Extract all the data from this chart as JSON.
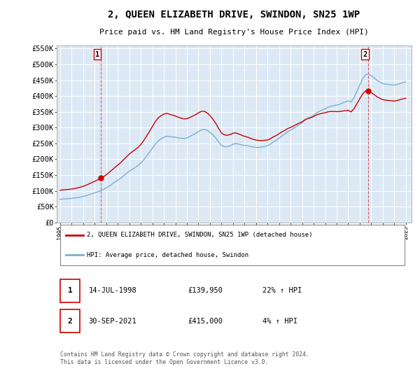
{
  "title": "2, QUEEN ELIZABETH DRIVE, SWINDON, SN25 1WP",
  "subtitle": "Price paid vs. HM Land Registry's House Price Index (HPI)",
  "background_color": "#ffffff",
  "plot_bg_color": "#dce9f5",
  "grid_color": "#ffffff",
  "hpi_line_color": "#7bafd4",
  "price_line_color": "#cc0000",
  "ylim": [
    0,
    560000
  ],
  "yticks": [
    0,
    50000,
    100000,
    150000,
    200000,
    250000,
    300000,
    350000,
    400000,
    450000,
    500000,
    550000
  ],
  "ytick_labels": [
    "£0",
    "£50K",
    "£100K",
    "£150K",
    "£200K",
    "£250K",
    "£300K",
    "£350K",
    "£400K",
    "£450K",
    "£500K",
    "£550K"
  ],
  "sale1_year": 1998.54,
  "sale1_price": 139950,
  "sale1_label": "1",
  "sale2_year": 2021.75,
  "sale2_price": 415000,
  "sale2_label": "2",
  "legend_line1": "2, QUEEN ELIZABETH DRIVE, SWINDON, SN25 1WP (detached house)",
  "legend_line2": "HPI: Average price, detached house, Swindon",
  "table_row1": [
    "1",
    "14-JUL-1998",
    "£139,950",
    "22% ↑ HPI"
  ],
  "table_row2": [
    "2",
    "30-SEP-2021",
    "£415,000",
    "4% ↑ HPI"
  ],
  "footer": "Contains HM Land Registry data © Crown copyright and database right 2024.\nThis data is licensed under the Open Government Licence v3.0.",
  "hpi_data_x": [
    1995.0,
    1995.25,
    1995.5,
    1995.75,
    1996.0,
    1996.25,
    1996.5,
    1996.75,
    1997.0,
    1997.25,
    1997.5,
    1997.75,
    1998.0,
    1998.25,
    1998.5,
    1998.75,
    1999.0,
    1999.25,
    1999.5,
    1999.75,
    2000.0,
    2000.25,
    2000.5,
    2000.75,
    2001.0,
    2001.25,
    2001.5,
    2001.75,
    2002.0,
    2002.25,
    2002.5,
    2002.75,
    2003.0,
    2003.25,
    2003.5,
    2003.75,
    2004.0,
    2004.25,
    2004.5,
    2004.75,
    2005.0,
    2005.25,
    2005.5,
    2005.75,
    2006.0,
    2006.25,
    2006.5,
    2006.75,
    2007.0,
    2007.25,
    2007.5,
    2007.75,
    2008.0,
    2008.25,
    2008.5,
    2008.75,
    2009.0,
    2009.25,
    2009.5,
    2009.75,
    2010.0,
    2010.25,
    2010.5,
    2010.75,
    2011.0,
    2011.25,
    2011.5,
    2011.75,
    2012.0,
    2012.25,
    2012.5,
    2012.75,
    2013.0,
    2013.25,
    2013.5,
    2013.75,
    2014.0,
    2014.25,
    2014.5,
    2014.75,
    2015.0,
    2015.25,
    2015.5,
    2015.75,
    2016.0,
    2016.25,
    2016.5,
    2016.75,
    2017.0,
    2017.25,
    2017.5,
    2017.75,
    2018.0,
    2018.25,
    2018.5,
    2018.75,
    2019.0,
    2019.25,
    2019.5,
    2019.75,
    2020.0,
    2020.25,
    2020.5,
    2020.75,
    2021.0,
    2021.25,
    2021.5,
    2021.75,
    2022.0,
    2022.25,
    2022.5,
    2022.75,
    2023.0,
    2023.25,
    2023.5,
    2023.75,
    2024.0,
    2024.25,
    2024.5,
    2024.75,
    2025.0
  ],
  "hpi_data_y": [
    73000,
    74000,
    74500,
    75000,
    76000,
    77000,
    78500,
    80000,
    82000,
    84500,
    87500,
    90500,
    93500,
    96500,
    100000,
    104000,
    109000,
    115000,
    121000,
    127500,
    133500,
    139500,
    147000,
    154500,
    161500,
    167500,
    173500,
    179500,
    187500,
    197500,
    209500,
    221500,
    234500,
    247500,
    257500,
    264500,
    269500,
    272500,
    271500,
    270500,
    269500,
    267500,
    266500,
    265500,
    267500,
    271500,
    276500,
    281500,
    287500,
    292500,
    294500,
    291500,
    285500,
    277500,
    267500,
    254500,
    243500,
    239500,
    239500,
    242500,
    247500,
    249500,
    247500,
    245500,
    243500,
    242500,
    240500,
    238500,
    237500,
    237500,
    238500,
    240500,
    242500,
    247500,
    254500,
    259500,
    266500,
    273500,
    279500,
    286500,
    291500,
    297500,
    303500,
    309500,
    315500,
    323500,
    329500,
    333500,
    339500,
    346500,
    351500,
    355500,
    359500,
    364500,
    367500,
    369500,
    371500,
    373500,
    377500,
    381500,
    384500,
    381500,
    394500,
    414500,
    434500,
    454500,
    467500,
    469500,
    464500,
    457500,
    449500,
    444500,
    439500,
    437500,
    436500,
    435500,
    434500,
    436500,
    439500,
    442500,
    444500
  ],
  "xlim_min": 1994.7,
  "xlim_max": 2025.5
}
